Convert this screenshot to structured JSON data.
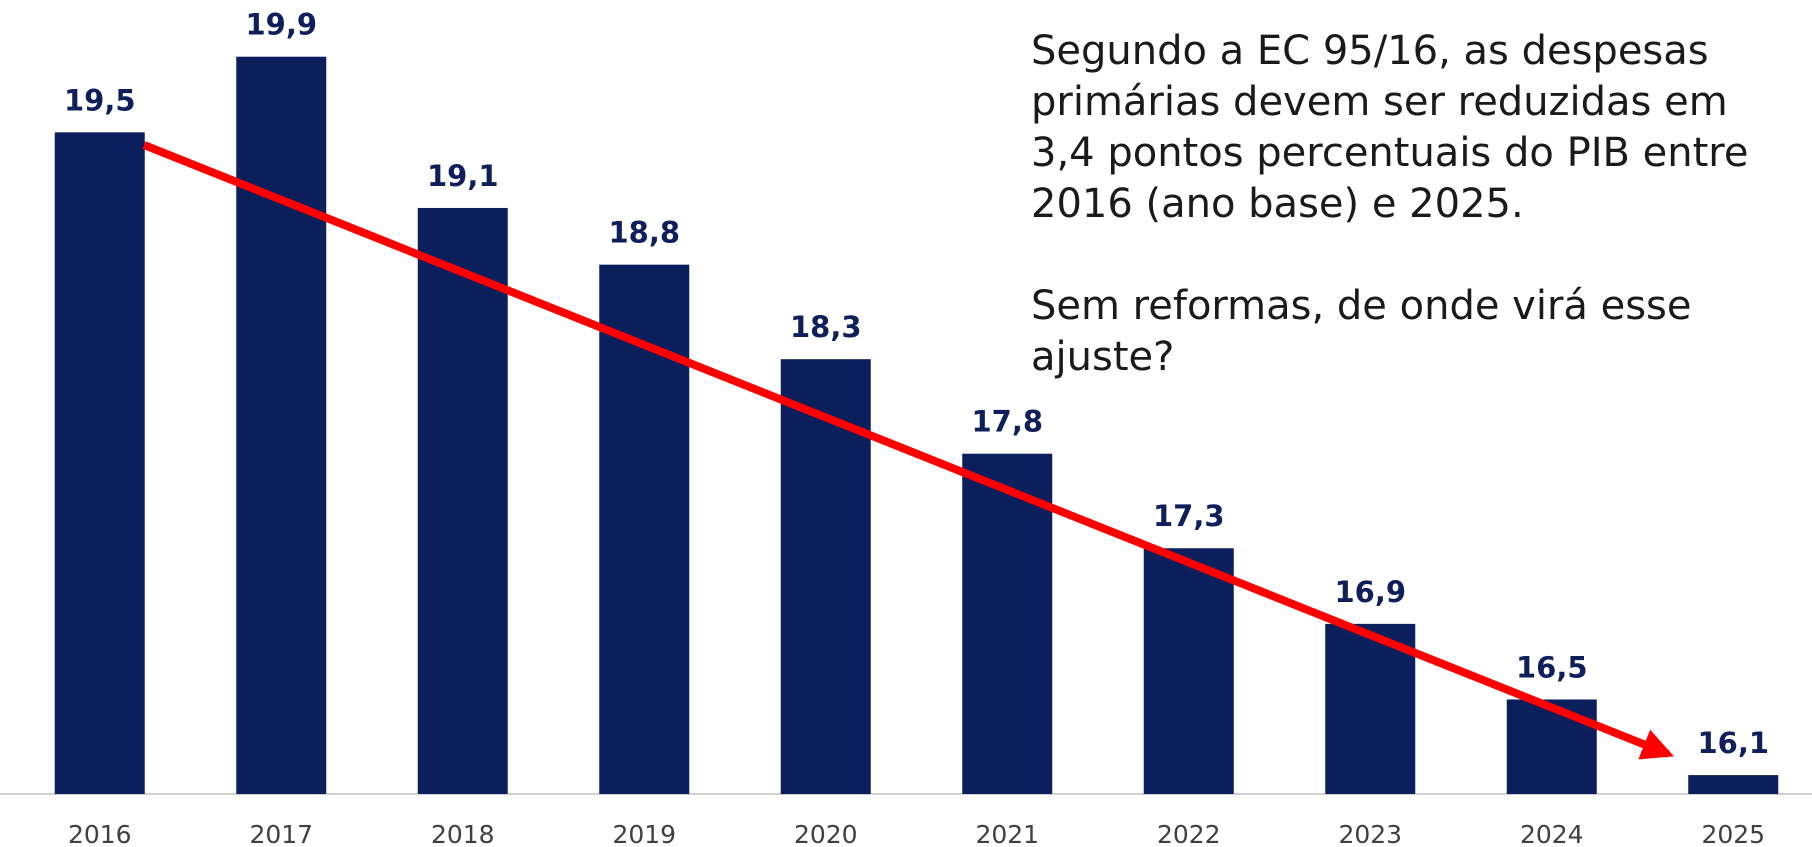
{
  "chart_data": {
    "type": "bar",
    "categories": [
      "2016",
      "2017",
      "2018",
      "2019",
      "2020",
      "2021",
      "2022",
      "2023",
      "2024",
      "2025"
    ],
    "values": [
      19.5,
      19.9,
      19.1,
      18.8,
      18.3,
      17.8,
      17.3,
      16.9,
      16.5,
      16.1
    ],
    "value_labels": [
      "19,5",
      "19,9",
      "19,1",
      "18,8",
      "18,3",
      "17,8",
      "17,3",
      "16,9",
      "16,5",
      "16,1"
    ],
    "color": "#0a1f5c",
    "ylim": [
      16,
      20.2
    ],
    "annotation": [
      [
        "Segundo a EC 95/16, as despesas",
        "primárias devem ser reduzidas em",
        "3,4 pontos percentuais do PIB entre",
        "2016 (ano base) e 2025."
      ],
      [
        "Sem reformas, de onde virá esse",
        "ajuste?"
      ]
    ]
  }
}
